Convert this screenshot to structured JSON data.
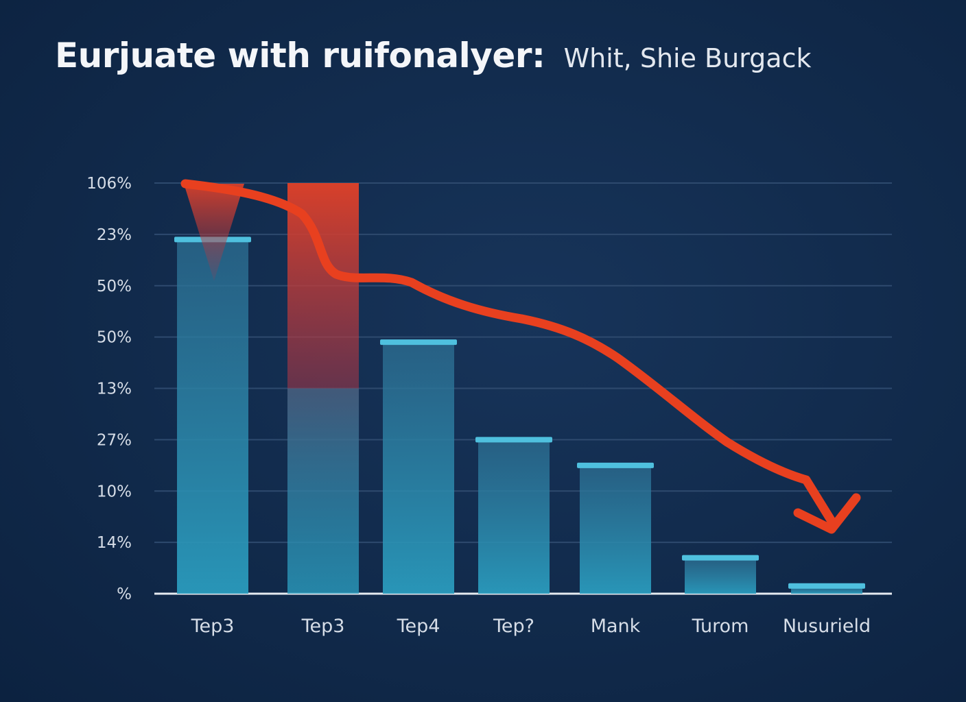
{
  "header": {
    "title": "Eurjuate with ruifonalyer:",
    "subtitle": "Whit, Shie Burgack"
  },
  "colors": {
    "background": "#112a4b",
    "bar": "#2a8fb0",
    "bar_cap": "#4fc0de",
    "trend": "#e8401f",
    "grid": "#2e4a6e"
  },
  "chart_data": {
    "type": "bar",
    "title": "Eurjuate with ruifonalyer:",
    "subtitle": "Whit, Shie Burgack",
    "xlabel": "",
    "ylabel": "",
    "y_tick_labels": [
      "106%",
      "23%",
      "50%",
      "50%",
      "13%",
      "27%",
      "10%",
      "14%",
      "%"
    ],
    "categories": [
      "Tep3",
      "Tep3",
      "Tep4",
      "Tep?",
      "Mank",
      "Turom",
      "Nusurield"
    ],
    "values": [
      6.9,
      8.0,
      4.9,
      3.0,
      2.5,
      0.7,
      0.15
    ],
    "ylim": [
      0,
      8
    ],
    "grid": true,
    "legend": "none",
    "annotations": [
      {
        "type": "trend-arrow",
        "direction": "down",
        "note": "red curved arrow descending from first bar to last bar"
      }
    ]
  }
}
